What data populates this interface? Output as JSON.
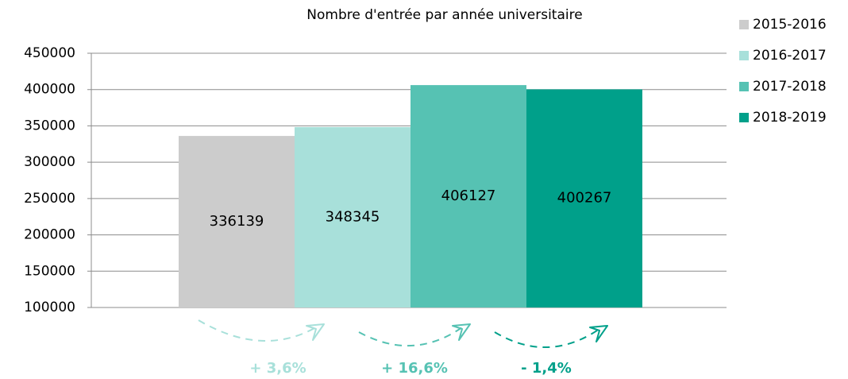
{
  "chart_data": {
    "type": "bar",
    "title": "Nombre d'entrée par année universitaire",
    "series": [
      {
        "name": "2015-2016",
        "color": "#cccccc",
        "values": [
          336139
        ]
      },
      {
        "name": "2016-2017",
        "color": "#a8e0da",
        "values": [
          348345
        ]
      },
      {
        "name": "2017-2018",
        "color": "#56c2b3",
        "values": [
          406127
        ]
      },
      {
        "name": "2018-2019",
        "color": "#00a08a",
        "values": [
          400267
        ]
      }
    ],
    "ylim": [
      100000,
      450000
    ],
    "yticks": [
      100000,
      150000,
      200000,
      250000,
      300000,
      350000,
      400000,
      450000
    ],
    "grid": true,
    "legend": "right",
    "annotations": [
      {
        "text": "+ 3,6%",
        "color": "#a8e0da"
      },
      {
        "text": "+ 16,6%",
        "color": "#56c2b3"
      },
      {
        "text": "- 1,4%",
        "color": "#00a08a"
      }
    ]
  }
}
